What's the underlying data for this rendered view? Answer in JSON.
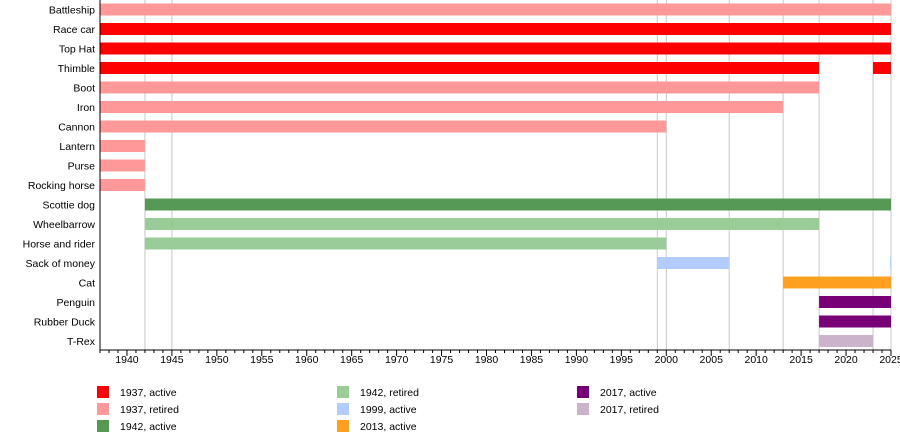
{
  "chart_data": {
    "type": "timeline",
    "xlim": [
      1937,
      2025
    ],
    "x_ticks": [
      1940,
      1945,
      1950,
      1955,
      1960,
      1965,
      1970,
      1975,
      1980,
      1985,
      1990,
      1995,
      2000,
      2005,
      2010,
      2015,
      2020,
      2025
    ],
    "gridlines": [
      1942,
      1945,
      1999,
      2000,
      2007,
      2013,
      2017,
      2023,
      2025
    ],
    "categories": [
      "Battleship",
      "Race car",
      "Top Hat",
      "Thimble",
      "Boot",
      "Iron",
      "Cannon",
      "Lantern",
      "Purse",
      "Rocking horse",
      "Scottie dog",
      "Wheelbarrow",
      "Horse and rider",
      "Sack of money",
      "Cat",
      "Penguin",
      "Rubber Duck",
      "T-Rex"
    ],
    "series": [
      {
        "name": "1937, active",
        "color": "#ff0000"
      },
      {
        "name": "1937, retired",
        "color": "#ff9999"
      },
      {
        "name": "1942, active",
        "color": "#559955"
      },
      {
        "name": "1942, retired",
        "color": "#99cc99"
      },
      {
        "name": "1999, active",
        "color": "#b3ccff"
      },
      {
        "name": "2013, active",
        "color": "#ffa020"
      },
      {
        "name": "2017, active",
        "color": "#770077"
      },
      {
        "name": "2017, retired",
        "color": "#ccb3cc"
      }
    ],
    "bars": [
      {
        "row": "Battleship",
        "start": 1937,
        "end": 2025,
        "series": "1937, retired"
      },
      {
        "row": "Race car",
        "start": 1937,
        "end": 2025,
        "series": "1937, active"
      },
      {
        "row": "Top Hat",
        "start": 1937,
        "end": 2025,
        "series": "1937, active"
      },
      {
        "row": "Thimble",
        "start": 1937,
        "end": 2017,
        "series": "1937, active"
      },
      {
        "row": "Thimble",
        "start": 2023,
        "end": 2025,
        "series": "1937, active"
      },
      {
        "row": "Boot",
        "start": 1937,
        "end": 2017,
        "series": "1937, retired"
      },
      {
        "row": "Iron",
        "start": 1937,
        "end": 2013,
        "series": "1937, retired"
      },
      {
        "row": "Cannon",
        "start": 1937,
        "end": 2000,
        "series": "1937, retired"
      },
      {
        "row": "Lantern",
        "start": 1937,
        "end": 1942,
        "series": "1937, retired"
      },
      {
        "row": "Purse",
        "start": 1937,
        "end": 1942,
        "series": "1937, retired"
      },
      {
        "row": "Rocking horse",
        "start": 1937,
        "end": 1942,
        "series": "1937, retired"
      },
      {
        "row": "Scottie dog",
        "start": 1942,
        "end": 2025,
        "series": "1942, active"
      },
      {
        "row": "Wheelbarrow",
        "start": 1942,
        "end": 2017,
        "series": "1942, retired"
      },
      {
        "row": "Horse and rider",
        "start": 1942,
        "end": 2000,
        "series": "1942, retired"
      },
      {
        "row": "Sack of money",
        "start": 1999,
        "end": 2007,
        "series": "1999, active"
      },
      {
        "row": "Sack of money",
        "start": 2024.9,
        "end": 2025,
        "series": "1999, active"
      },
      {
        "row": "Cat",
        "start": 2013,
        "end": 2025,
        "series": "2013, active"
      },
      {
        "row": "Penguin",
        "start": 2017,
        "end": 2025,
        "series": "2017, active"
      },
      {
        "row": "Rubber Duck",
        "start": 2017,
        "end": 2025,
        "series": "2017, active"
      },
      {
        "row": "T-Rex",
        "start": 2017,
        "end": 2023,
        "series": "2017, retired"
      }
    ],
    "legend_placement": "bottom"
  }
}
